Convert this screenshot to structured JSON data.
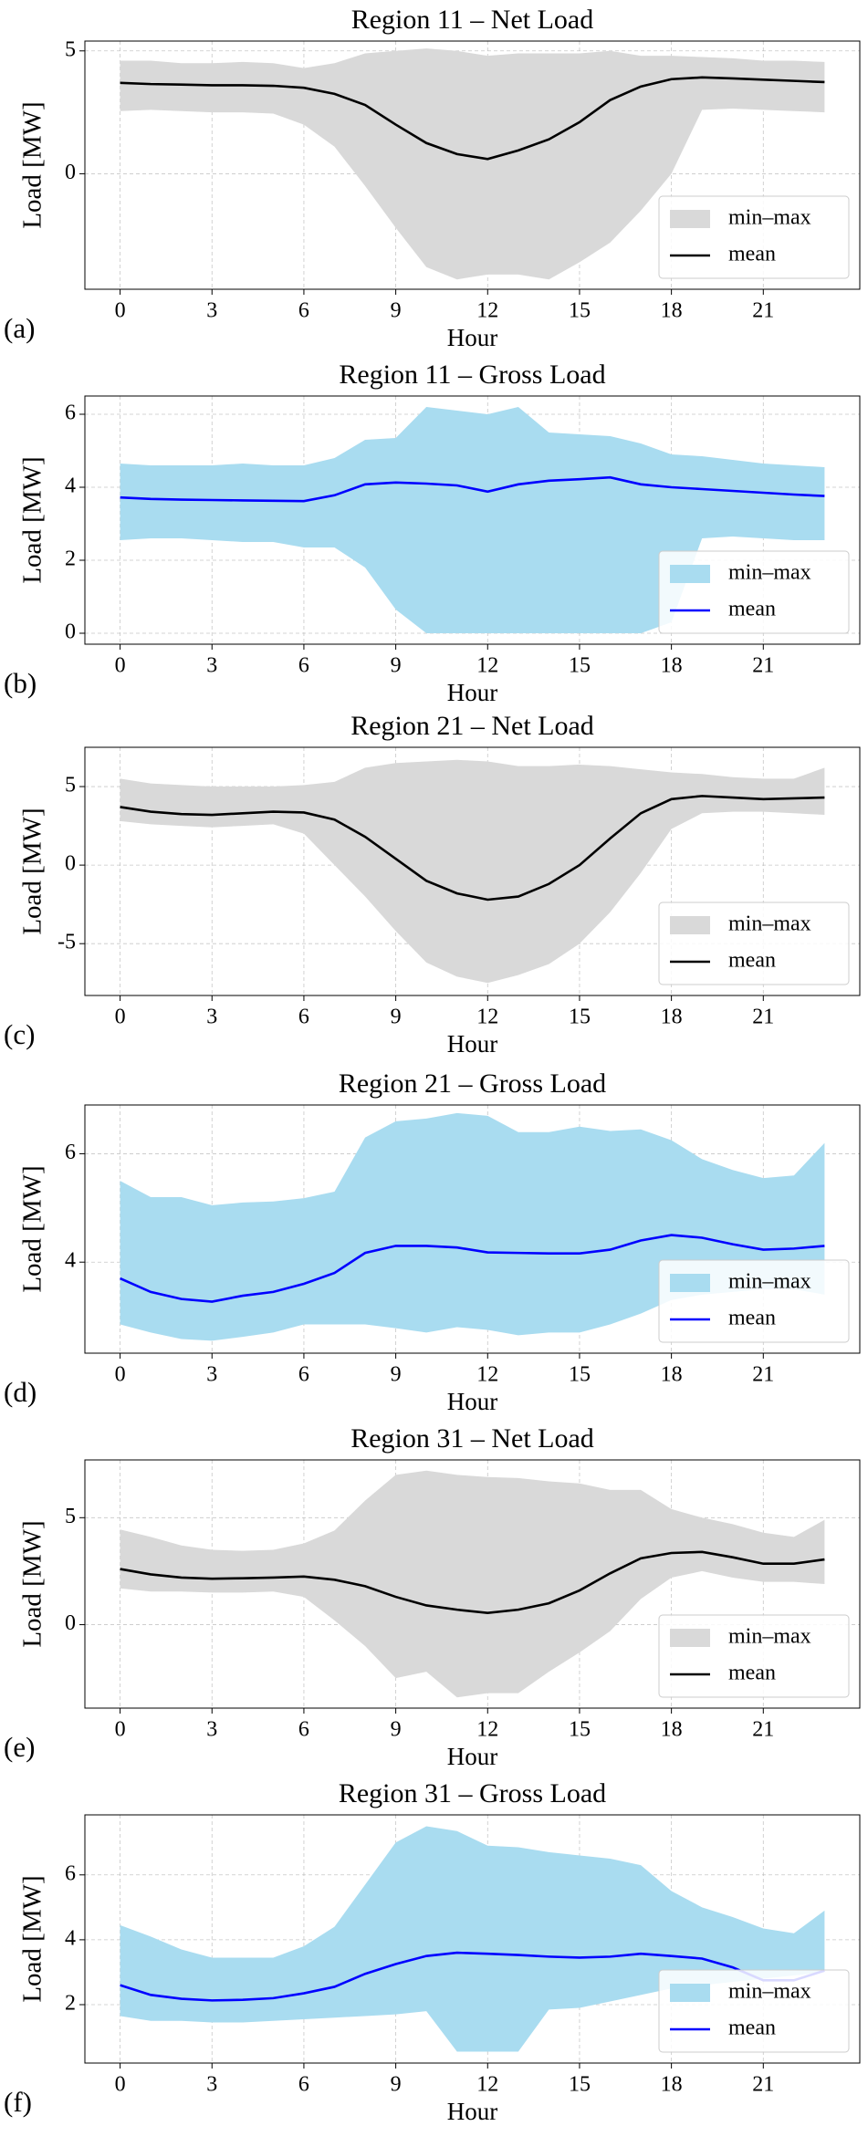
{
  "chart_data": [
    {
      "type": "line",
      "title": "Region 11 – Net Load",
      "panel_label": "(a)",
      "xlabel": "Hour",
      "ylabel": "Load [MW]",
      "x": [
        0,
        1,
        2,
        3,
        4,
        5,
        6,
        7,
        8,
        9,
        10,
        11,
        12,
        13,
        14,
        15,
        16,
        17,
        18,
        19,
        20,
        21,
        22,
        23
      ],
      "xlim": [
        -1.15,
        24.15
      ],
      "xticks": [
        0,
        3,
        6,
        9,
        12,
        15,
        18,
        21
      ],
      "ylim": [
        -4.7,
        5.4
      ],
      "yticks": [
        0,
        5
      ],
      "grid": true,
      "legend": "lower right",
      "series": [
        {
          "name": "min–max",
          "color": "#d9d9d9",
          "lower": [
            2.55,
            2.6,
            2.55,
            2.5,
            2.5,
            2.45,
            2.0,
            1.1,
            -0.5,
            -2.2,
            -3.8,
            -4.3,
            -4.1,
            -4.1,
            -4.3,
            -3.6,
            -2.8,
            -1.5,
            0,
            2.6,
            2.65,
            2.6,
            2.55,
            2.5
          ],
          "upper": [
            4.6,
            4.6,
            4.5,
            4.5,
            4.55,
            4.5,
            4.3,
            4.5,
            4.9,
            5.0,
            5.1,
            5.0,
            4.8,
            4.9,
            4.9,
            4.9,
            5.0,
            4.8,
            4.8,
            4.75,
            4.7,
            4.6,
            4.6,
            4.55
          ]
        },
        {
          "name": "mean",
          "color": "#000000",
          "values": [
            3.7,
            3.65,
            3.63,
            3.6,
            3.6,
            3.58,
            3.5,
            3.25,
            2.8,
            2.0,
            1.25,
            0.8,
            0.6,
            0.95,
            1.4,
            2.1,
            3.0,
            3.55,
            3.85,
            3.92,
            3.88,
            3.83,
            3.78,
            3.73
          ]
        }
      ]
    },
    {
      "type": "line",
      "title": "Region 11 – Gross Load",
      "panel_label": "(b)",
      "xlabel": "Hour",
      "ylabel": "Load [MW]",
      "x": [
        0,
        1,
        2,
        3,
        4,
        5,
        6,
        7,
        8,
        9,
        10,
        11,
        12,
        13,
        14,
        15,
        16,
        17,
        18,
        19,
        20,
        21,
        22,
        23
      ],
      "xlim": [
        -1.15,
        24.15
      ],
      "xticks": [
        0,
        3,
        6,
        9,
        12,
        15,
        18,
        21
      ],
      "ylim": [
        -0.3,
        6.5
      ],
      "yticks": [
        0,
        2,
        4,
        6
      ],
      "grid": true,
      "legend": "lower right",
      "series": [
        {
          "name": "min–max",
          "color": "#a9dcf0",
          "lower": [
            2.55,
            2.6,
            2.6,
            2.55,
            2.5,
            2.5,
            2.35,
            2.35,
            1.8,
            0.65,
            0,
            0,
            0,
            0,
            0,
            0,
            0,
            0,
            0.3,
            2.6,
            2.65,
            2.6,
            2.55,
            2.55
          ],
          "upper": [
            4.65,
            4.6,
            4.6,
            4.6,
            4.65,
            4.6,
            4.6,
            4.8,
            5.3,
            5.35,
            6.2,
            6.1,
            6.0,
            6.2,
            5.5,
            5.45,
            5.4,
            5.2,
            4.9,
            4.85,
            4.75,
            4.65,
            4.6,
            4.55
          ]
        },
        {
          "name": "mean",
          "color": "#0000ff",
          "values": [
            3.72,
            3.68,
            3.66,
            3.65,
            3.64,
            3.63,
            3.62,
            3.78,
            4.08,
            4.13,
            4.1,
            4.05,
            3.88,
            4.08,
            4.18,
            4.22,
            4.27,
            4.08,
            4.0,
            3.95,
            3.9,
            3.85,
            3.8,
            3.76
          ]
        }
      ]
    },
    {
      "type": "line",
      "title": "Region 21 – Net Load",
      "panel_label": "(c)",
      "xlabel": "Hour",
      "ylabel": "Load [MW]",
      "x": [
        0,
        1,
        2,
        3,
        4,
        5,
        6,
        7,
        8,
        9,
        10,
        11,
        12,
        13,
        14,
        15,
        16,
        17,
        18,
        19,
        20,
        21,
        22,
        23
      ],
      "xlim": [
        -1.15,
        24.15
      ],
      "xticks": [
        0,
        3,
        6,
        9,
        12,
        15,
        18,
        21
      ],
      "ylim": [
        -8.3,
        7.5
      ],
      "yticks": [
        -5,
        0,
        5
      ],
      "grid": true,
      "legend": "lower right",
      "series": [
        {
          "name": "min–max",
          "color": "#d9d9d9",
          "lower": [
            2.8,
            2.6,
            2.5,
            2.4,
            2.5,
            2.6,
            2.0,
            0,
            -2.0,
            -4.2,
            -6.2,
            -7.1,
            -7.5,
            -7.0,
            -6.3,
            -5.0,
            -3.0,
            -0.5,
            2.3,
            3.3,
            3.4,
            3.4,
            3.3,
            3.2
          ],
          "upper": [
            5.5,
            5.2,
            5.1,
            5.0,
            5.0,
            5.0,
            5.1,
            5.3,
            6.2,
            6.5,
            6.6,
            6.7,
            6.6,
            6.3,
            6.3,
            6.4,
            6.3,
            6.1,
            5.9,
            5.8,
            5.6,
            5.5,
            5.5,
            6.2
          ]
        },
        {
          "name": "mean",
          "color": "#000000",
          "values": [
            3.7,
            3.4,
            3.25,
            3.2,
            3.3,
            3.4,
            3.35,
            2.9,
            1.8,
            0.4,
            -1.0,
            -1.8,
            -2.2,
            -2.0,
            -1.2,
            0,
            1.7,
            3.3,
            4.2,
            4.4,
            4.3,
            4.2,
            4.25,
            4.3
          ]
        }
      ]
    },
    {
      "type": "line",
      "title": "Region 21 – Gross Load",
      "panel_label": "(d)",
      "xlabel": "Hour",
      "ylabel": "Load [MW]",
      "x": [
        0,
        1,
        2,
        3,
        4,
        5,
        6,
        7,
        8,
        9,
        10,
        11,
        12,
        13,
        14,
        15,
        16,
        17,
        18,
        19,
        20,
        21,
        22,
        23
      ],
      "xlim": [
        -1.15,
        24.15
      ],
      "xticks": [
        0,
        3,
        6,
        9,
        12,
        15,
        18,
        21
      ],
      "ylim": [
        2.32,
        6.9
      ],
      "yticks": [
        4,
        6
      ],
      "grid": true,
      "legend": "lower right",
      "series": [
        {
          "name": "min–max",
          "color": "#a9dcf0",
          "lower": [
            2.85,
            2.7,
            2.58,
            2.55,
            2.62,
            2.7,
            2.85,
            2.85,
            2.85,
            2.78,
            2.7,
            2.8,
            2.75,
            2.65,
            2.7,
            2.7,
            2.85,
            3.05,
            3.3,
            3.4,
            3.45,
            3.5,
            3.5,
            3.4
          ],
          "upper": [
            5.5,
            5.2,
            5.2,
            5.05,
            5.1,
            5.12,
            5.18,
            5.3,
            6.3,
            6.6,
            6.65,
            6.75,
            6.7,
            6.4,
            6.4,
            6.5,
            6.42,
            6.45,
            6.25,
            5.9,
            5.7,
            5.55,
            5.6,
            6.2
          ]
        },
        {
          "name": "mean",
          "color": "#0000ff",
          "values": [
            3.7,
            3.45,
            3.32,
            3.27,
            3.38,
            3.45,
            3.6,
            3.8,
            4.17,
            4.3,
            4.3,
            4.27,
            4.18,
            4.17,
            4.16,
            4.16,
            4.23,
            4.4,
            4.5,
            4.45,
            4.33,
            4.23,
            4.25,
            4.3
          ]
        }
      ]
    },
    {
      "type": "line",
      "title": "Region 31 – Net Load",
      "panel_label": "(e)",
      "xlabel": "Hour",
      "ylabel": "Load [MW]",
      "x": [
        0,
        1,
        2,
        3,
        4,
        5,
        6,
        7,
        8,
        9,
        10,
        11,
        12,
        13,
        14,
        15,
        16,
        17,
        18,
        19,
        20,
        21,
        22,
        23
      ],
      "xlim": [
        -1.15,
        24.15
      ],
      "xticks": [
        0,
        3,
        6,
        9,
        12,
        15,
        18,
        21
      ],
      "ylim": [
        -3.9,
        7.7
      ],
      "yticks": [
        0,
        5
      ],
      "grid": true,
      "legend": "lower right",
      "series": [
        {
          "name": "min–max",
          "color": "#d9d9d9",
          "lower": [
            1.7,
            1.55,
            1.55,
            1.5,
            1.5,
            1.55,
            1.3,
            0.2,
            -1.0,
            -2.5,
            -2.2,
            -3.4,
            -3.2,
            -3.2,
            -2.2,
            -1.3,
            -0.3,
            1.2,
            2.2,
            2.5,
            2.2,
            2.0,
            2.0,
            1.9
          ],
          "upper": [
            4.45,
            4.1,
            3.7,
            3.5,
            3.45,
            3.5,
            3.8,
            4.4,
            5.8,
            7.0,
            7.2,
            7.0,
            6.9,
            6.85,
            6.7,
            6.6,
            6.3,
            6.3,
            5.4,
            5.0,
            4.7,
            4.3,
            4.1,
            4.9
          ]
        },
        {
          "name": "mean",
          "color": "#000000",
          "values": [
            2.6,
            2.35,
            2.2,
            2.15,
            2.17,
            2.2,
            2.25,
            2.1,
            1.8,
            1.3,
            0.9,
            0.7,
            0.55,
            0.7,
            1.0,
            1.6,
            2.4,
            3.1,
            3.35,
            3.4,
            3.15,
            2.85,
            2.85,
            3.05
          ]
        }
      ]
    },
    {
      "type": "line",
      "title": "Region 31 – Gross Load",
      "panel_label": "(f)",
      "xlabel": "Hour",
      "ylabel": "Load [MW]",
      "x": [
        0,
        1,
        2,
        3,
        4,
        5,
        6,
        7,
        8,
        9,
        10,
        11,
        12,
        13,
        14,
        15,
        16,
        17,
        18,
        19,
        20,
        21,
        22,
        23
      ],
      "xlim": [
        -1.15,
        24.15
      ],
      "xticks": [
        0,
        3,
        6,
        9,
        12,
        15,
        18,
        21
      ],
      "ylim": [
        0.2,
        7.85
      ],
      "yticks": [
        2,
        4,
        6
      ],
      "grid": true,
      "legend": "lower right",
      "series": [
        {
          "name": "min–max",
          "color": "#a9dcf0",
          "lower": [
            1.65,
            1.5,
            1.5,
            1.45,
            1.45,
            1.5,
            1.55,
            1.6,
            1.65,
            1.7,
            1.8,
            0.55,
            0.55,
            0.55,
            1.85,
            1.9,
            2.1,
            2.3,
            2.5,
            2.6,
            2.7,
            2.8,
            2.9,
            3.0
          ],
          "upper": [
            4.45,
            4.1,
            3.7,
            3.45,
            3.45,
            3.45,
            3.8,
            4.4,
            5.7,
            7.0,
            7.5,
            7.35,
            6.9,
            6.85,
            6.7,
            6.6,
            6.5,
            6.3,
            5.5,
            5.0,
            4.7,
            4.35,
            4.2,
            4.9
          ]
        },
        {
          "name": "mean",
          "color": "#0000ff",
          "values": [
            2.6,
            2.3,
            2.18,
            2.13,
            2.15,
            2.2,
            2.35,
            2.55,
            2.95,
            3.25,
            3.5,
            3.6,
            3.57,
            3.53,
            3.48,
            3.45,
            3.48,
            3.57,
            3.5,
            3.42,
            3.15,
            2.75,
            2.75,
            3.05
          ]
        }
      ]
    }
  ]
}
